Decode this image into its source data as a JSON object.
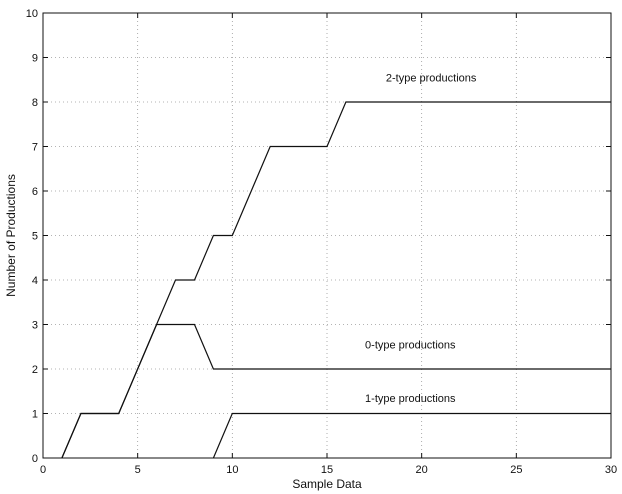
{
  "chart_data": {
    "type": "line",
    "title": "",
    "xlabel": "Sample Data",
    "ylabel": "Number of Productions",
    "xlim": [
      0,
      30
    ],
    "ylim": [
      0,
      10
    ],
    "x_ticks": [
      0,
      5,
      10,
      15,
      20,
      25,
      30
    ],
    "y_ticks": [
      0,
      1,
      2,
      3,
      4,
      5,
      6,
      7,
      8,
      9,
      10
    ],
    "grid": true,
    "series": [
      {
        "name": "2-type productions",
        "color": "#111111",
        "x": [
          1,
          2,
          4,
          7,
          8,
          9,
          10,
          12,
          15,
          16,
          30
        ],
        "y": [
          0,
          1,
          1,
          4,
          4,
          5,
          5,
          7,
          7,
          8,
          8
        ]
      },
      {
        "name": "0-type productions",
        "color": "#111111",
        "x": [
          1,
          2,
          4,
          6,
          8,
          9,
          30
        ],
        "y": [
          0,
          1,
          1,
          3,
          3,
          2,
          2
        ]
      },
      {
        "name": "1-type productions",
        "color": "#111111",
        "x": [
          9,
          10,
          30
        ],
        "y": [
          0,
          1,
          1
        ]
      }
    ],
    "annotations": [
      {
        "text": "2-type productions",
        "x": 20.5,
        "y": 8.55
      },
      {
        "text": "0-type productions",
        "x": 19.4,
        "y": 2.55
      },
      {
        "text": "1-type productions",
        "x": 19.4,
        "y": 1.35
      }
    ]
  }
}
